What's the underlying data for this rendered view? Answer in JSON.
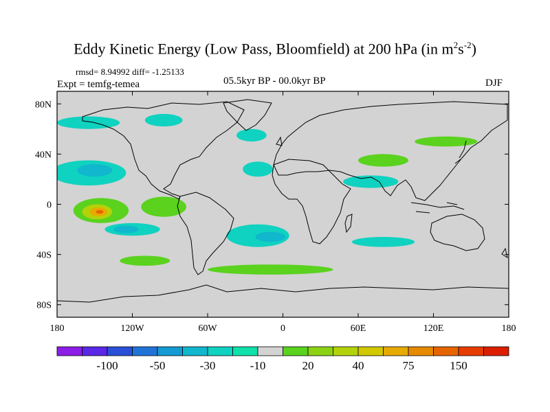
{
  "title": {
    "main": "Eddy Kinetic Energy (Low Pass, Bloomfield) at 200 hPa (in m",
    "sup1": "2",
    "mid": "s",
    "sup2": "-2",
    "end": ")"
  },
  "stats": "rmsd= 8.94992 diff= -1.25133",
  "expt": "Expt = temfg-temea",
  "period": "05.5kyr BP - 00.0kyr BP",
  "season": "DJF",
  "chart_data": {
    "type": "heatmap",
    "projection": "cylindrical-equidistant",
    "lon_range": [
      -180,
      180
    ],
    "lat_range": [
      -90,
      90
    ],
    "x_ticks": [
      {
        "lon": -180,
        "label": "180"
      },
      {
        "lon": -120,
        "label": "120W"
      },
      {
        "lon": -60,
        "label": "60W"
      },
      {
        "lon": 0,
        "label": "0"
      },
      {
        "lon": 60,
        "label": "60E"
      },
      {
        "lon": 120,
        "label": "120E"
      },
      {
        "lon": 180,
        "label": "180"
      }
    ],
    "y_ticks": [
      {
        "lat": 80,
        "label": "80N"
      },
      {
        "lat": 40,
        "label": "40N"
      },
      {
        "lat": 0,
        "label": "0"
      },
      {
        "lat": -40,
        "label": "40S"
      },
      {
        "lat": -80,
        "label": "80S"
      }
    ],
    "colorbar": {
      "colors": [
        "#8c1ee6",
        "#5a28e6",
        "#2a50d8",
        "#2273d8",
        "#159ad2",
        "#10b7cd",
        "#10d2c0",
        "#10e0aa",
        "#d3d3d3",
        "#5ad21e",
        "#8cd214",
        "#b4d20a",
        "#d2c800",
        "#e6aa00",
        "#e68a00",
        "#e66400",
        "#e63c00",
        "#dc1e00"
      ],
      "labels": [
        {
          "index": 1,
          "label": "-100"
        },
        {
          "index": 3,
          "label": "-50"
        },
        {
          "index": 5,
          "label": "-30"
        },
        {
          "index": 7,
          "label": "-10"
        },
        {
          "index": 9,
          "label": "20"
        },
        {
          "index": 11,
          "label": "40"
        },
        {
          "index": 13,
          "label": "75"
        },
        {
          "index": 15,
          "label": "150"
        }
      ]
    },
    "regions": [
      {
        "name": "north-pacific-negative",
        "color": "#10d2c0",
        "lon": -155,
        "lat": 25,
        "rlon": 30,
        "rlat": 10
      },
      {
        "name": "north-pacific-neg-core",
        "color": "#10b7cd",
        "lon": -150,
        "lat": 27,
        "rlon": 14,
        "rlat": 5
      },
      {
        "name": "north-atlantic-negative",
        "color": "#10d2c0",
        "lon": -20,
        "lat": 28,
        "rlon": 12,
        "rlat": 6
      },
      {
        "name": "arctic-pacific-negative",
        "color": "#10d2c0",
        "lon": -155,
        "lat": 65,
        "rlon": 25,
        "rlat": 5
      },
      {
        "name": "canada-negative",
        "color": "#10d2c0",
        "lon": -95,
        "lat": 67,
        "rlon": 15,
        "rlat": 5
      },
      {
        "name": "europe-negative",
        "color": "#10d2c0",
        "lon": -25,
        "lat": 55,
        "rlon": 12,
        "rlat": 5
      },
      {
        "name": "siberia-positive",
        "color": "#5ad21e",
        "lon": 130,
        "lat": 50,
        "rlon": 25,
        "rlat": 4
      },
      {
        "name": "asia-jet-positive",
        "color": "#5ad21e",
        "lon": 80,
        "lat": 35,
        "rlon": 20,
        "rlat": 5
      },
      {
        "name": "himalaya-negative",
        "color": "#10d2c0",
        "lon": 70,
        "lat": 18,
        "rlon": 22,
        "rlat": 5
      },
      {
        "name": "east-pacific-positive",
        "color": "#5ad21e",
        "lon": -145,
        "lat": -5,
        "rlon": 22,
        "rlat": 10
      },
      {
        "name": "east-pacific-pos-core1",
        "color": "#b4d20a",
        "lon": -148,
        "lat": -6,
        "rlon": 12,
        "rlat": 6
      },
      {
        "name": "east-pacific-pos-core2",
        "color": "#e6aa00",
        "lon": -147,
        "lat": -6,
        "rlon": 7,
        "rlat": 3.5
      },
      {
        "name": "east-pacific-pos-core3",
        "color": "#e66400",
        "lon": -146,
        "lat": -6,
        "rlon": 3,
        "rlat": 1.5
      },
      {
        "name": "central-pacific-positive",
        "color": "#5ad21e",
        "lon": -95,
        "lat": -2,
        "rlon": 18,
        "rlat": 8
      },
      {
        "name": "south-pacific-negative",
        "color": "#10d2c0",
        "lon": -120,
        "lat": -20,
        "rlon": 22,
        "rlat": 5
      },
      {
        "name": "south-pacific-neg-core",
        "color": "#10b7cd",
        "lon": -125,
        "lat": -20,
        "rlon": 10,
        "rlat": 3
      },
      {
        "name": "south-atlantic-negative",
        "color": "#10d2c0",
        "lon": -20,
        "lat": -25,
        "rlon": 25,
        "rlat": 9
      },
      {
        "name": "south-atlantic-neg-core",
        "color": "#10b7cd",
        "lon": -10,
        "lat": -26,
        "rlon": 12,
        "rlat": 4
      },
      {
        "name": "southern-ocean-positive",
        "color": "#5ad21e",
        "lon": -10,
        "lat": -52,
        "rlon": 50,
        "rlat": 4
      },
      {
        "name": "south-pacific-positive",
        "color": "#5ad21e",
        "lon": -110,
        "lat": -45,
        "rlon": 20,
        "rlat": 4
      },
      {
        "name": "south-indian-negative",
        "color": "#10d2c0",
        "lon": 80,
        "lat": -30,
        "rlon": 25,
        "rlat": 4
      }
    ]
  }
}
